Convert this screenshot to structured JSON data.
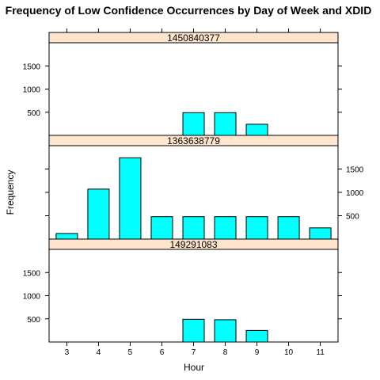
{
  "chart_data": {
    "type": "bar",
    "title": "Frequency of Low Confidence Occurrences by Day of Week and XDID",
    "xlabel": "Hour",
    "ylabel": "Frequency",
    "categories": [
      "3",
      "4",
      "5",
      "6",
      "7",
      "8",
      "9",
      "10",
      "11"
    ],
    "ylim": [
      0,
      2000
    ],
    "yticks": [
      500,
      1000,
      1500
    ],
    "colors": {
      "bar_fill": "#00ffff",
      "bar_stroke": "#000000",
      "strip_fill": "#ffe5cc"
    },
    "panels": [
      {
        "name": "1450840377",
        "values": [
          0,
          0,
          0,
          0,
          490,
          490,
          240,
          0,
          0
        ]
      },
      {
        "name": "1363638779",
        "values": [
          120,
          1070,
          1740,
          480,
          480,
          480,
          480,
          480,
          240
        ]
      },
      {
        "name": "149291083",
        "values": [
          0,
          0,
          0,
          0,
          490,
          480,
          250,
          0,
          0
        ]
      }
    ]
  }
}
